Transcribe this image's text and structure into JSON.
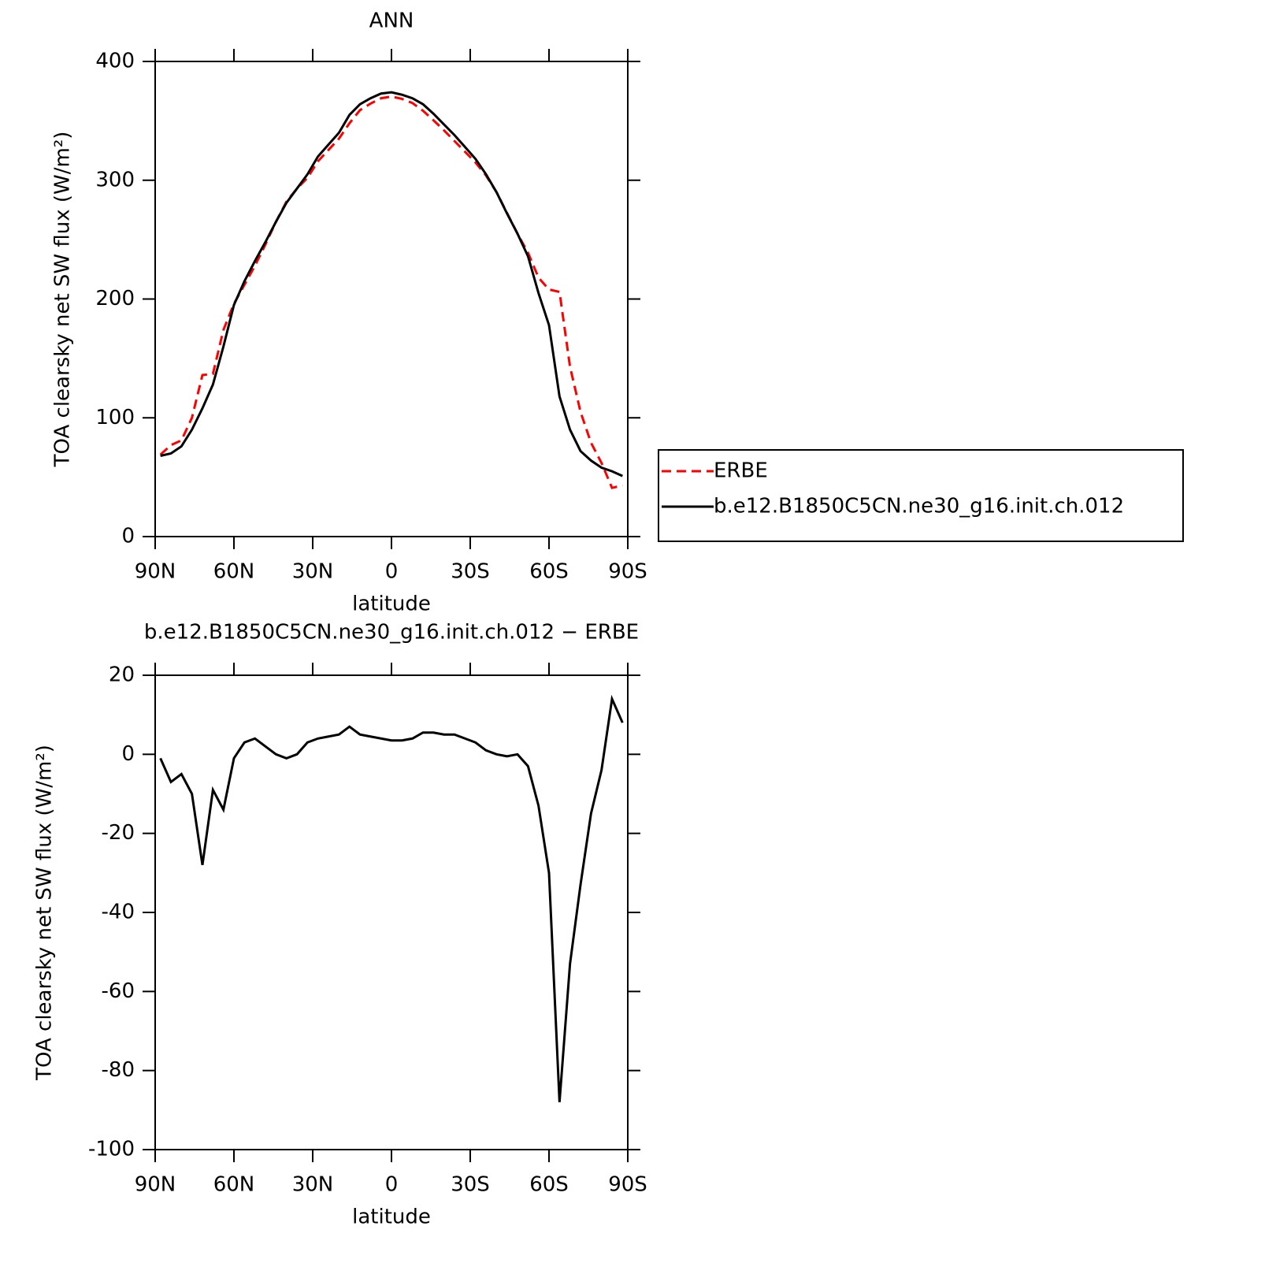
{
  "chart_data": [
    {
      "type": "line",
      "title": "ANN",
      "xlabel": "latitude",
      "ylabel": "TOA clearsky net SW flux (W/m²)",
      "x": [
        88,
        84,
        80,
        76,
        72,
        68,
        64,
        60,
        56,
        52,
        48,
        44,
        40,
        36,
        32,
        28,
        24,
        20,
        16,
        12,
        8,
        4,
        0,
        -4,
        -8,
        -12,
        -16,
        -20,
        -24,
        -28,
        -32,
        -36,
        -40,
        -44,
        -48,
        -52,
        -56,
        -60,
        -64,
        -68,
        -72,
        -76,
        -80,
        -84,
        -88
      ],
      "series": [
        {
          "name": "ERBE",
          "color": "#ff0000",
          "dashed": true,
          "values": [
            69,
            77,
            81,
            100,
            136,
            137,
            174,
            196,
            212,
            228,
            246,
            265,
            282,
            293,
            302,
            316,
            325.5,
            335,
            348,
            359,
            364.5,
            369,
            370.5,
            368.5,
            365,
            358.5,
            350.5,
            342,
            333,
            324,
            315,
            304,
            290,
            272.5,
            255,
            239,
            218,
            208,
            206,
            143,
            105,
            79,
            62,
            41,
            43
          ]
        },
        {
          "name": "b.e12.B1850C5CN.ne30_g16.init.ch.012",
          "color": "#000000",
          "dashed": false,
          "values": [
            68,
            70,
            76,
            90,
            108,
            128,
            160,
            195,
            215,
            232,
            248,
            265,
            281,
            293,
            305,
            320,
            330,
            340,
            355,
            364,
            369,
            373,
            374,
            372,
            369,
            364,
            356,
            347,
            338,
            328,
            318,
            305,
            290,
            272,
            255,
            236,
            205,
            178,
            118,
            90,
            72,
            64,
            58,
            55,
            51
          ]
        }
      ],
      "xlim": [
        90,
        -90
      ],
      "xticks": [
        {
          "value": 90,
          "label": "90N"
        },
        {
          "value": 60,
          "label": "60N"
        },
        {
          "value": 30,
          "label": "30N"
        },
        0,
        {
          "value": -30,
          "label": "30S"
        },
        {
          "value": -60,
          "label": "60S"
        },
        {
          "value": -90,
          "label": "90S"
        }
      ],
      "ylim": [
        0,
        400
      ],
      "yticks": [
        0,
        100,
        200,
        300,
        400
      ],
      "legend": "right"
    },
    {
      "type": "line",
      "title": "b.e12.B1850C5CN.ne30_g16.init.ch.012 − ERBE",
      "xlabel": "latitude",
      "ylabel": "TOA clearsky net SW flux (W/m²)",
      "x": [
        88,
        84,
        80,
        76,
        72,
        68,
        64,
        60,
        56,
        52,
        48,
        44,
        40,
        36,
        32,
        28,
        24,
        20,
        16,
        12,
        8,
        4,
        0,
        -4,
        -8,
        -12,
        -16,
        -20,
        -24,
        -28,
        -32,
        -36,
        -40,
        -44,
        -48,
        -52,
        -56,
        -60,
        -64,
        -68,
        -72,
        -76,
        -80,
        -84,
        -88
      ],
      "series": [
        {
          "color": "#000000",
          "dashed": false,
          "values": [
            -1,
            -7,
            -5,
            -10,
            -28,
            -9,
            -14,
            -1,
            3,
            4,
            2,
            0,
            -1,
            0,
            3,
            4,
            4.5,
            5,
            7,
            5,
            4.5,
            4,
            3.5,
            3.5,
            4,
            5.5,
            5.5,
            5,
            5,
            4,
            3,
            1,
            0,
            -0.5,
            0,
            -3,
            -13,
            -30,
            -88,
            -53,
            -33,
            -15,
            -4,
            14,
            8
          ]
        }
      ],
      "xlim": [
        90,
        -90
      ],
      "xticks": [
        {
          "value": 90,
          "label": "90N"
        },
        {
          "value": 60,
          "label": "60N"
        },
        {
          "value": 30,
          "label": "30N"
        },
        0,
        {
          "value": -30,
          "label": "30S"
        },
        {
          "value": -60,
          "label": "60S"
        },
        {
          "value": -90,
          "label": "90S"
        }
      ],
      "ylim": [
        -100,
        20
      ],
      "yticks": [
        -100,
        -80,
        -60,
        -40,
        -20,
        0,
        20
      ]
    }
  ]
}
